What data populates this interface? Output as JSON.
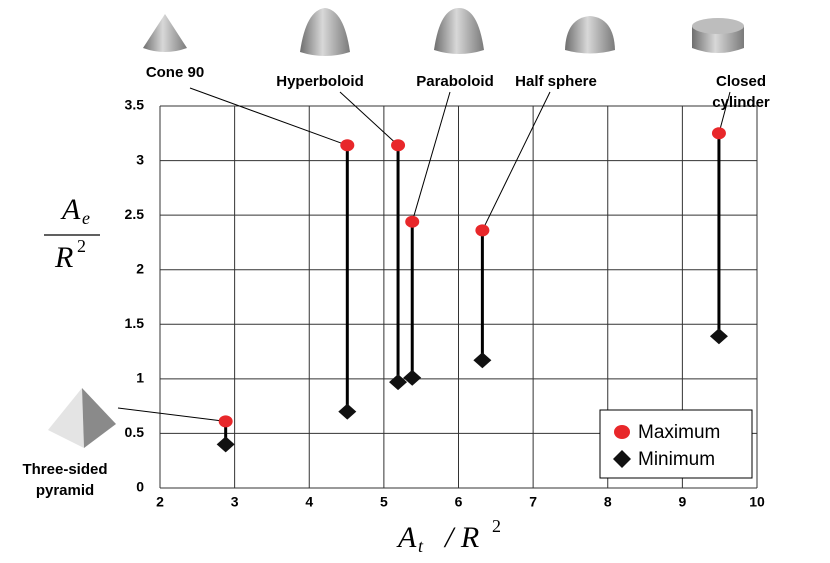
{
  "chart_data": {
    "type": "range",
    "categories": [
      "Three-sided pyramid",
      "Cone 90",
      "Hyperboloid",
      "Paraboloid",
      "Half sphere",
      "Closed cylinder"
    ],
    "x": [
      2.88,
      4.51,
      5.19,
      5.38,
      6.32,
      9.49
    ],
    "series": [
      {
        "name": "Maximum",
        "color": "#e8272a",
        "marker": "circle",
        "values": [
          0.61,
          3.14,
          3.14,
          2.44,
          2.36,
          3.25
        ]
      },
      {
        "name": "Minimum",
        "color": "#111111",
        "marker": "diamond",
        "values": [
          0.4,
          0.7,
          0.97,
          1.01,
          1.17,
          1.39
        ]
      }
    ],
    "xlim": [
      2,
      10
    ],
    "xticks": [
      2,
      3,
      4,
      5,
      6,
      7,
      8,
      9,
      10
    ],
    "ylim": [
      0,
      3.5
    ],
    "yticks": [
      0,
      0.5,
      1,
      1.5,
      2,
      2.5,
      3,
      3.5
    ],
    "grid": true,
    "legend": "lower right",
    "ylabel": {
      "numerator": "A",
      "numerator_sub": "e",
      "denominator": "R",
      "denominator_sup": "2"
    },
    "xlabel": {
      "base": "A",
      "sub": "t",
      "rest": "/ R",
      "sup": "2"
    }
  }
}
